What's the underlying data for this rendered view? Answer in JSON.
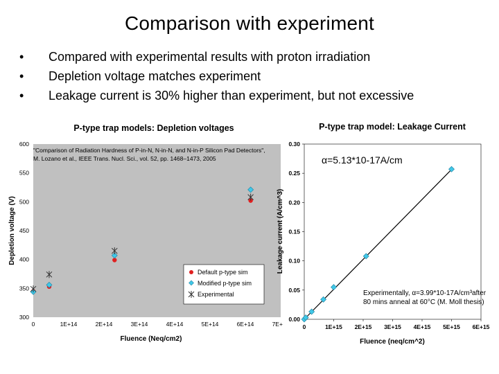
{
  "slide": {
    "title": "Comparison with experiment",
    "bullets": [
      "Compared with experimental results with proton irradiation",
      "Depletion voltage matches experiment",
      "Leakage current is 30% higher than experiment, but not excessive"
    ],
    "bullet_glyph": "•"
  },
  "chart_data": [
    {
      "type": "scatter",
      "title": "P-type trap models: Depletion voltages",
      "xlabel": "Fluence (Neq/cm2)",
      "ylabel": "Depletion voltage (V)",
      "xlim": [
        0,
        700000000000000.0
      ],
      "ylim": [
        300,
        600
      ],
      "xticks": [
        0,
        100000000000000.0,
        200000000000000.0,
        300000000000000.0,
        400000000000000.0,
        500000000000000.0,
        600000000000000.0,
        700000000000000.0
      ],
      "xtick_labels": [
        "0",
        "1E+14",
        "2E+14",
        "3E+14",
        "4E+14",
        "5E+14",
        "6E+14",
        "7E+14"
      ],
      "yticks": [
        300,
        350,
        400,
        450,
        500,
        550,
        600
      ],
      "ytick_labels": [
        "300",
        "350",
        "400",
        "450",
        "500",
        "550",
        "600"
      ],
      "grid": false,
      "legend_position": "bottom-right",
      "background_color": "#c0c0c0",
      "annotation": "\"Comparison of Radiation Hardness of P-in-N, N-in-N, and N-in-P Silicon Pad Detectors\", M. Lozano et al., IEEE Trans. Nucl. Sci., vol. 52, pp. 1468–1473, 2005",
      "series": [
        {
          "name": "Default p-type sim",
          "marker": "circle",
          "color": "#e02020",
          "x": [
            0,
            45000000000000.0,
            230000000000000.0,
            615000000000000.0
          ],
          "y": [
            345,
            353,
            399,
            502
          ]
        },
        {
          "name": "Modified p-type sim",
          "marker": "diamond",
          "color": "#40c8e8",
          "x": [
            0,
            45000000000000.0,
            230000000000000.0,
            615000000000000.0
          ],
          "y": [
            344,
            356,
            407,
            521
          ]
        },
        {
          "name": "Experimental",
          "marker": "asterisk",
          "color": "#303030",
          "x": [
            0,
            45000000000000.0,
            230000000000000.0,
            615000000000000.0
          ],
          "y": [
            349,
            374,
            415,
            508
          ]
        }
      ]
    },
    {
      "type": "line",
      "title": "P-type trap model: Leakage Current",
      "xlabel": "Fluence (neq/cm^2)",
      "ylabel": "Leakage current (A/cm^3)",
      "xlim": [
        0,
        6000000000000000.0
      ],
      "ylim": [
        0,
        0.3
      ],
      "xticks": [
        0,
        1000000000000000.0,
        2000000000000000.0,
        3000000000000000.0,
        4000000000000000.0,
        5000000000000000.0,
        6000000000000000.0
      ],
      "xtick_labels": [
        "0",
        "1E+15",
        "2E+15",
        "3E+15",
        "4E+15",
        "5E+15",
        "6E+15"
      ],
      "yticks": [
        0,
        0.05,
        0.1,
        0.15,
        0.2,
        0.25,
        0.3
      ],
      "ytick_labels": [
        "0.00",
        "0.05",
        "0.10",
        "0.15",
        "0.20",
        "0.25",
        "0.30"
      ],
      "grid": false,
      "background_color": "#ffffff",
      "annotation_alpha": "α=5.13*10-17A/cm",
      "annotation_experiment": "Experimentally, α=3.99*10-17A/cm³after 80 mins anneal at 60°C (M. Moll thesis)",
      "series": [
        {
          "marker": "diamond",
          "color": "#40c8e8",
          "x": [
            0,
            50000000000000.0,
            250000000000000.0,
            650000000000000.0,
            1000000000000000.0,
            2100000000000000.0,
            5000000000000000.0
          ],
          "y": [
            0.0,
            0.003,
            0.013,
            0.034,
            0.055,
            0.108,
            0.257
          ]
        }
      ],
      "fit_line": {
        "x": [
          0,
          5000000000000000.0
        ],
        "y": [
          0,
          0.2565
        ],
        "color": "#000000"
      }
    }
  ]
}
